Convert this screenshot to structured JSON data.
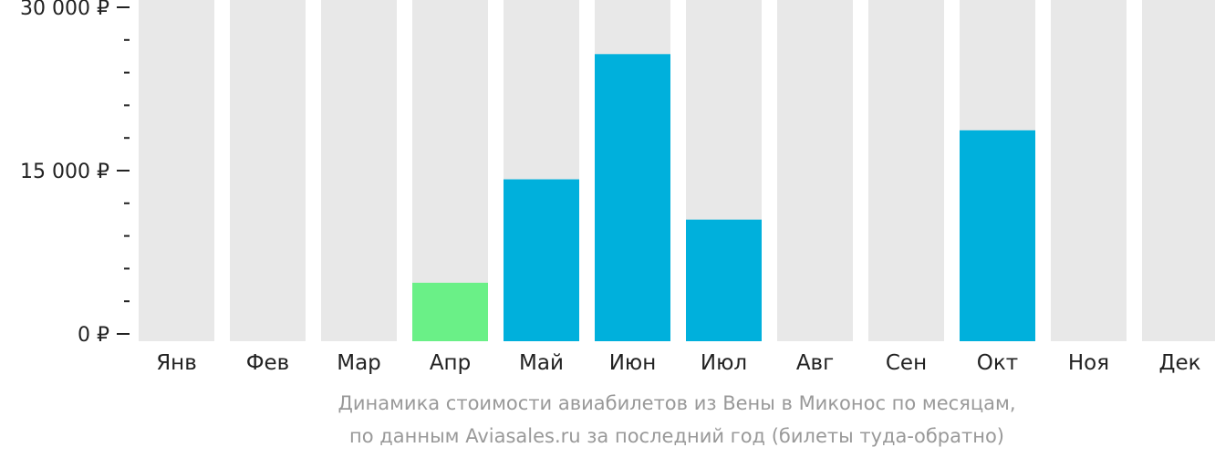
{
  "chart_data": {
    "type": "bar",
    "title": "",
    "xlabel": "",
    "ylabel": "",
    "categories": [
      "Янв",
      "Фев",
      "Мар",
      "Апр",
      "Май",
      "Июн",
      "Июл",
      "Авг",
      "Сен",
      "Окт",
      "Ноя",
      "Дек"
    ],
    "values": [
      null,
      null,
      null,
      4700,
      14200,
      25700,
      10500,
      null,
      null,
      18700,
      null,
      null
    ],
    "ylim": [
      0,
      30000
    ],
    "y_ticks": [
      {
        "value": 0,
        "label": "0 ₽"
      },
      {
        "value": 15000,
        "label": "15 000 ₽"
      },
      {
        "value": 30000,
        "label": "30 000 ₽"
      }
    ],
    "minor_tick_step": 3000,
    "grid": false,
    "legend": "none",
    "colors": {
      "bar": "#00b0dc",
      "cheapest_bar": "#6af087",
      "background_column": "#e8e8e8",
      "axis": "#222222"
    },
    "highlighted_category": "Апр"
  },
  "caption": {
    "line1": "Динамика стоимости авиабилетов из Вены в Миконос по месяцам,",
    "line2": "по данным Aviasales.ru за последний год (билеты туда-обратно)"
  }
}
